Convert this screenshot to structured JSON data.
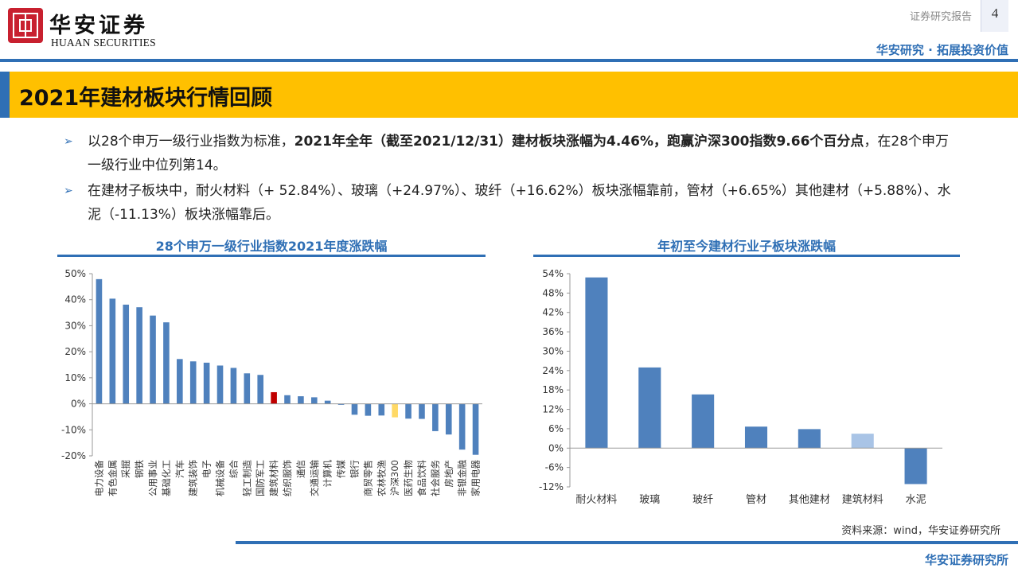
{
  "header": {
    "logo_cn": "华安证券",
    "logo_en": "HUAAN SECURITIES",
    "report_type": "证券研究报告",
    "page_number": "4",
    "tagline": "华安研究 · 拓展投资价值",
    "brand_color": "#2f6fb5",
    "logo_color": "#c8202f"
  },
  "title": {
    "text": "2021年建材板块行情回顾",
    "banner_color": "#ffc000"
  },
  "bullets": [
    {
      "segments": [
        {
          "text": "以28个申万一级行业指数为标准，",
          "bold": false
        },
        {
          "text": "2021年全年（截至2021/12/31）建材板块涨幅为4.46%，跑赢沪深300指数9.66个百分点",
          "bold": true
        },
        {
          "text": "，在28个申万一级行业中位列第14。",
          "bold": false
        }
      ]
    },
    {
      "segments": [
        {
          "text": "在建材子板块中，耐火材料（+ 52.84%）、玻璃（+24.97%）、玻纤（+16.62%）板块涨幅靠前，管材（+6.65%）其他建材（+5.88%）、水泥（-11.13%）板块涨幅靠后。",
          "bold": false
        }
      ]
    }
  ],
  "chart_data": [
    {
      "type": "bar",
      "title": "28个申万一级行业指数2021年度涨跌幅",
      "categories": [
        "电力设备",
        "有色金属",
        "采掘",
        "钢铁",
        "公用事业",
        "基础化工",
        "汽车",
        "建筑装饰",
        "电子",
        "机械设备",
        "综合",
        "轻工制造",
        "国防军工",
        "建筑材料",
        "纺织服饰",
        "通信",
        "交通运输",
        "计算机",
        "传媒",
        "银行",
        "商贸零售",
        "农林牧渔",
        "沪深300",
        "医药生物",
        "食品饮料",
        "社会服务",
        "房地产",
        "非银金融",
        "家用电器"
      ],
      "values": [
        47.9,
        40.4,
        38.1,
        37.1,
        33.9,
        31.3,
        17.2,
        16.3,
        15.8,
        14.7,
        13.8,
        11.7,
        11.1,
        4.46,
        3.3,
        2.9,
        2.5,
        1.2,
        -0.4,
        -4.2,
        -4.6,
        -4.5,
        -5.2,
        -5.7,
        -5.8,
        -10.5,
        -11.8,
        -17.6,
        -19.6
      ],
      "highlight": {
        "建筑材料": "#c00000",
        "沪深300": "#ffd966"
      },
      "bar_color": "#4f81bd",
      "ylim": [
        -20,
        50
      ],
      "yticks": [
        "50%",
        "40%",
        "30%",
        "20%",
        "10%",
        "0%",
        "-10%",
        "-20%"
      ],
      "ytick_values": [
        50,
        40,
        30,
        20,
        10,
        0,
        -10,
        -20
      ],
      "grid": false,
      "xlabel": "",
      "ylabel": ""
    },
    {
      "type": "bar",
      "title": "年初至今建材行业子板块涨跌幅",
      "categories": [
        "耐火材料",
        "玻璃",
        "玻纤",
        "管材",
        "其他建材",
        "建筑材料",
        "水泥"
      ],
      "values": [
        52.84,
        24.97,
        16.62,
        6.65,
        5.88,
        4.46,
        -11.13
      ],
      "highlight": {
        "建筑材料": "#a9c4e6"
      },
      "bar_color": "#4f81bd",
      "ylim": [
        -12,
        54
      ],
      "yticks": [
        "54%",
        "48%",
        "42%",
        "36%",
        "30%",
        "24%",
        "18%",
        "12%",
        "6%",
        "0%",
        "-6%",
        "-12%"
      ],
      "ytick_values": [
        54,
        48,
        42,
        36,
        30,
        24,
        18,
        12,
        6,
        0,
        -6,
        -12
      ],
      "grid": false,
      "xlabel": "",
      "ylabel": ""
    }
  ],
  "source": "资料来源：wind，华安证券研究所",
  "footer": "华安证券研究所"
}
